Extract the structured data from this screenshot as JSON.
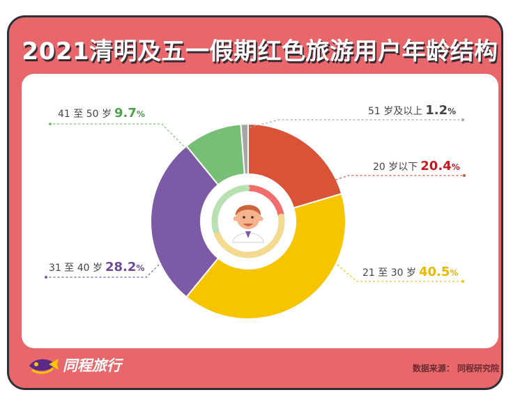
{
  "title": "2021清明及五一假期红色旅游用户年龄结构",
  "brand": {
    "name": "同程旅行",
    "icon": "fish-logo-icon"
  },
  "source": "数据来源： 同程研究院",
  "colors": {
    "background": "#e8676b",
    "panel": "#ffffff"
  },
  "chart_data": {
    "type": "pie",
    "subtype": "donut",
    "center_icon": "person-avatar-icon",
    "slices": [
      {
        "label": "20 岁以下",
        "value": 20.4,
        "display": "20.4",
        "color": "#d95336",
        "label_color": "#c8181e"
      },
      {
        "label": "21 至 30 岁",
        "value": 40.5,
        "display": "40.5",
        "color": "#f6c500",
        "label_color": "#e9b800"
      },
      {
        "label": "31 至 40 岁",
        "value": 28.2,
        "display": "28.2",
        "color": "#7d5aa6",
        "label_color": "#6c4a97"
      },
      {
        "label": "41 至 50 岁",
        "value": 9.7,
        "display": "9.7",
        "color": "#77bf76",
        "label_color": "#4da04c"
      },
      {
        "label": "51 岁及以上",
        "value": 1.2,
        "display": "1.2",
        "color": "#a6a6a6",
        "label_color": "#444444"
      }
    ]
  }
}
